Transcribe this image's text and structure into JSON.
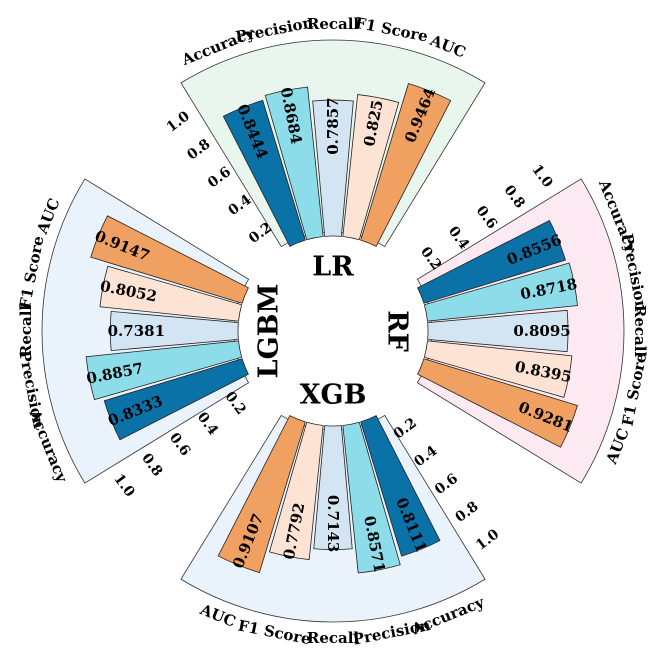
{
  "chart_data": {
    "type": "bar",
    "layout": "circular-grouped",
    "title": "",
    "metrics": [
      "Accuracy",
      "Precision",
      "Recall",
      "F1 Score",
      "AUC"
    ],
    "ylim": [
      0,
      1.0
    ],
    "ticks": [
      "0.2",
      "0.4",
      "0.6",
      "0.8",
      "1.0"
    ],
    "metric_colors": {
      "Accuracy": "#0b72a8",
      "Precision": "#8ddcea",
      "Recall": "#d3e5f3",
      "F1 Score": "#fde3d4",
      "AUC": "#f0a061"
    },
    "groups": [
      {
        "model": "LR",
        "background": "#e8f6ee",
        "values": [
          0.8444,
          0.8684,
          0.7857,
          0.825,
          0.9464
        ],
        "labels": [
          "0.8444",
          "0.8684",
          "0.7857",
          "0.825",
          "0.9464"
        ]
      },
      {
        "model": "RF",
        "background": "#fde9f1",
        "values": [
          0.8556,
          0.8718,
          0.8095,
          0.8395,
          0.9281
        ],
        "labels": [
          "0.8556",
          "0.8718",
          "0.8095",
          "0.8395",
          "0.9281"
        ]
      },
      {
        "model": "XGB",
        "background": "#eaf3fb",
        "values": [
          0.8111,
          0.8571,
          0.7143,
          0.7792,
          0.9107
        ],
        "labels": [
          "0.8111",
          "0.8571",
          "0.7143",
          "0.7792",
          "0.9107"
        ]
      },
      {
        "model": "LGBM",
        "background": "#eaf3fb",
        "values": [
          0.8333,
          0.8857,
          0.7381,
          0.8052,
          0.9147
        ],
        "labels": [
          "0.8333",
          "0.8857",
          "0.7381",
          "0.8052",
          "0.9147"
        ]
      }
    ]
  }
}
